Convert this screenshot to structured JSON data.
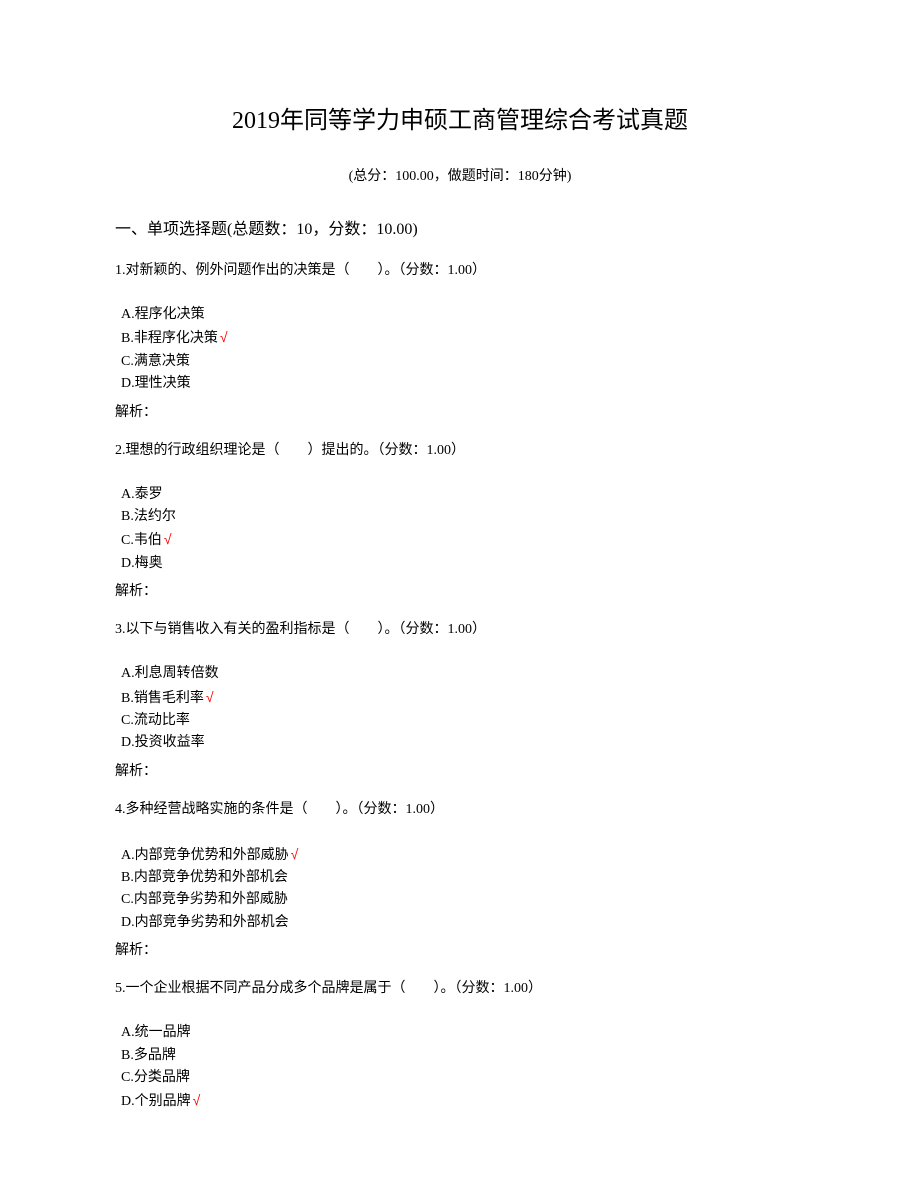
{
  "title": "2019年同等学力申硕工商管理综合考试真题",
  "subtitle": "(总分：100.00，做题时间：180分钟)",
  "section_header": "一、单项选择题(总题数：10，分数：10.00)",
  "questions": [
    {
      "stem": "1.对新颖的、例外问题作出的决策是（　　）。（分数：1.00）",
      "options": [
        {
          "text": "A.程序化决策",
          "correct": false
        },
        {
          "text": "B.非程序化决策",
          "correct": true
        },
        {
          "text": "C.满意决策",
          "correct": false
        },
        {
          "text": "D.理性决策",
          "correct": false
        }
      ],
      "explanation": "解析："
    },
    {
      "stem": "2.理想的行政组织理论是（　　）提出的。（分数：1.00）",
      "options": [
        {
          "text": "A.泰罗",
          "correct": false
        },
        {
          "text": "B.法约尔",
          "correct": false
        },
        {
          "text": "C.韦伯",
          "correct": true
        },
        {
          "text": "D.梅奥",
          "correct": false
        }
      ],
      "explanation": "解析："
    },
    {
      "stem": "3.以下与销售收入有关的盈利指标是（　　）。（分数：1.00）",
      "options": [
        {
          "text": "A.利息周转倍数",
          "correct": false
        },
        {
          "text": "B.销售毛利率",
          "correct": true
        },
        {
          "text": "C.流动比率",
          "correct": false
        },
        {
          "text": "D.投资收益率",
          "correct": false
        }
      ],
      "explanation": "解析："
    },
    {
      "stem": "4.多种经营战略实施的条件是（　　）。（分数：1.00）",
      "options": [
        {
          "text": "A.内部竞争优势和外部威胁",
          "correct": true
        },
        {
          "text": "B.内部竞争优势和外部机会",
          "correct": false
        },
        {
          "text": "C.内部竞争劣势和外部威胁",
          "correct": false
        },
        {
          "text": "D.内部竞争劣势和外部机会",
          "correct": false
        }
      ],
      "explanation": "解析："
    },
    {
      "stem": "5.一个企业根据不同产品分成多个品牌是属于（　　）。（分数：1.00）",
      "options": [
        {
          "text": "A.统一品牌",
          "correct": false
        },
        {
          "text": "B.多品牌",
          "correct": false
        },
        {
          "text": "C.分类品牌",
          "correct": false
        },
        {
          "text": "D.个别品牌",
          "correct": true
        }
      ],
      "explanation": ""
    }
  ],
  "check_mark": "√"
}
